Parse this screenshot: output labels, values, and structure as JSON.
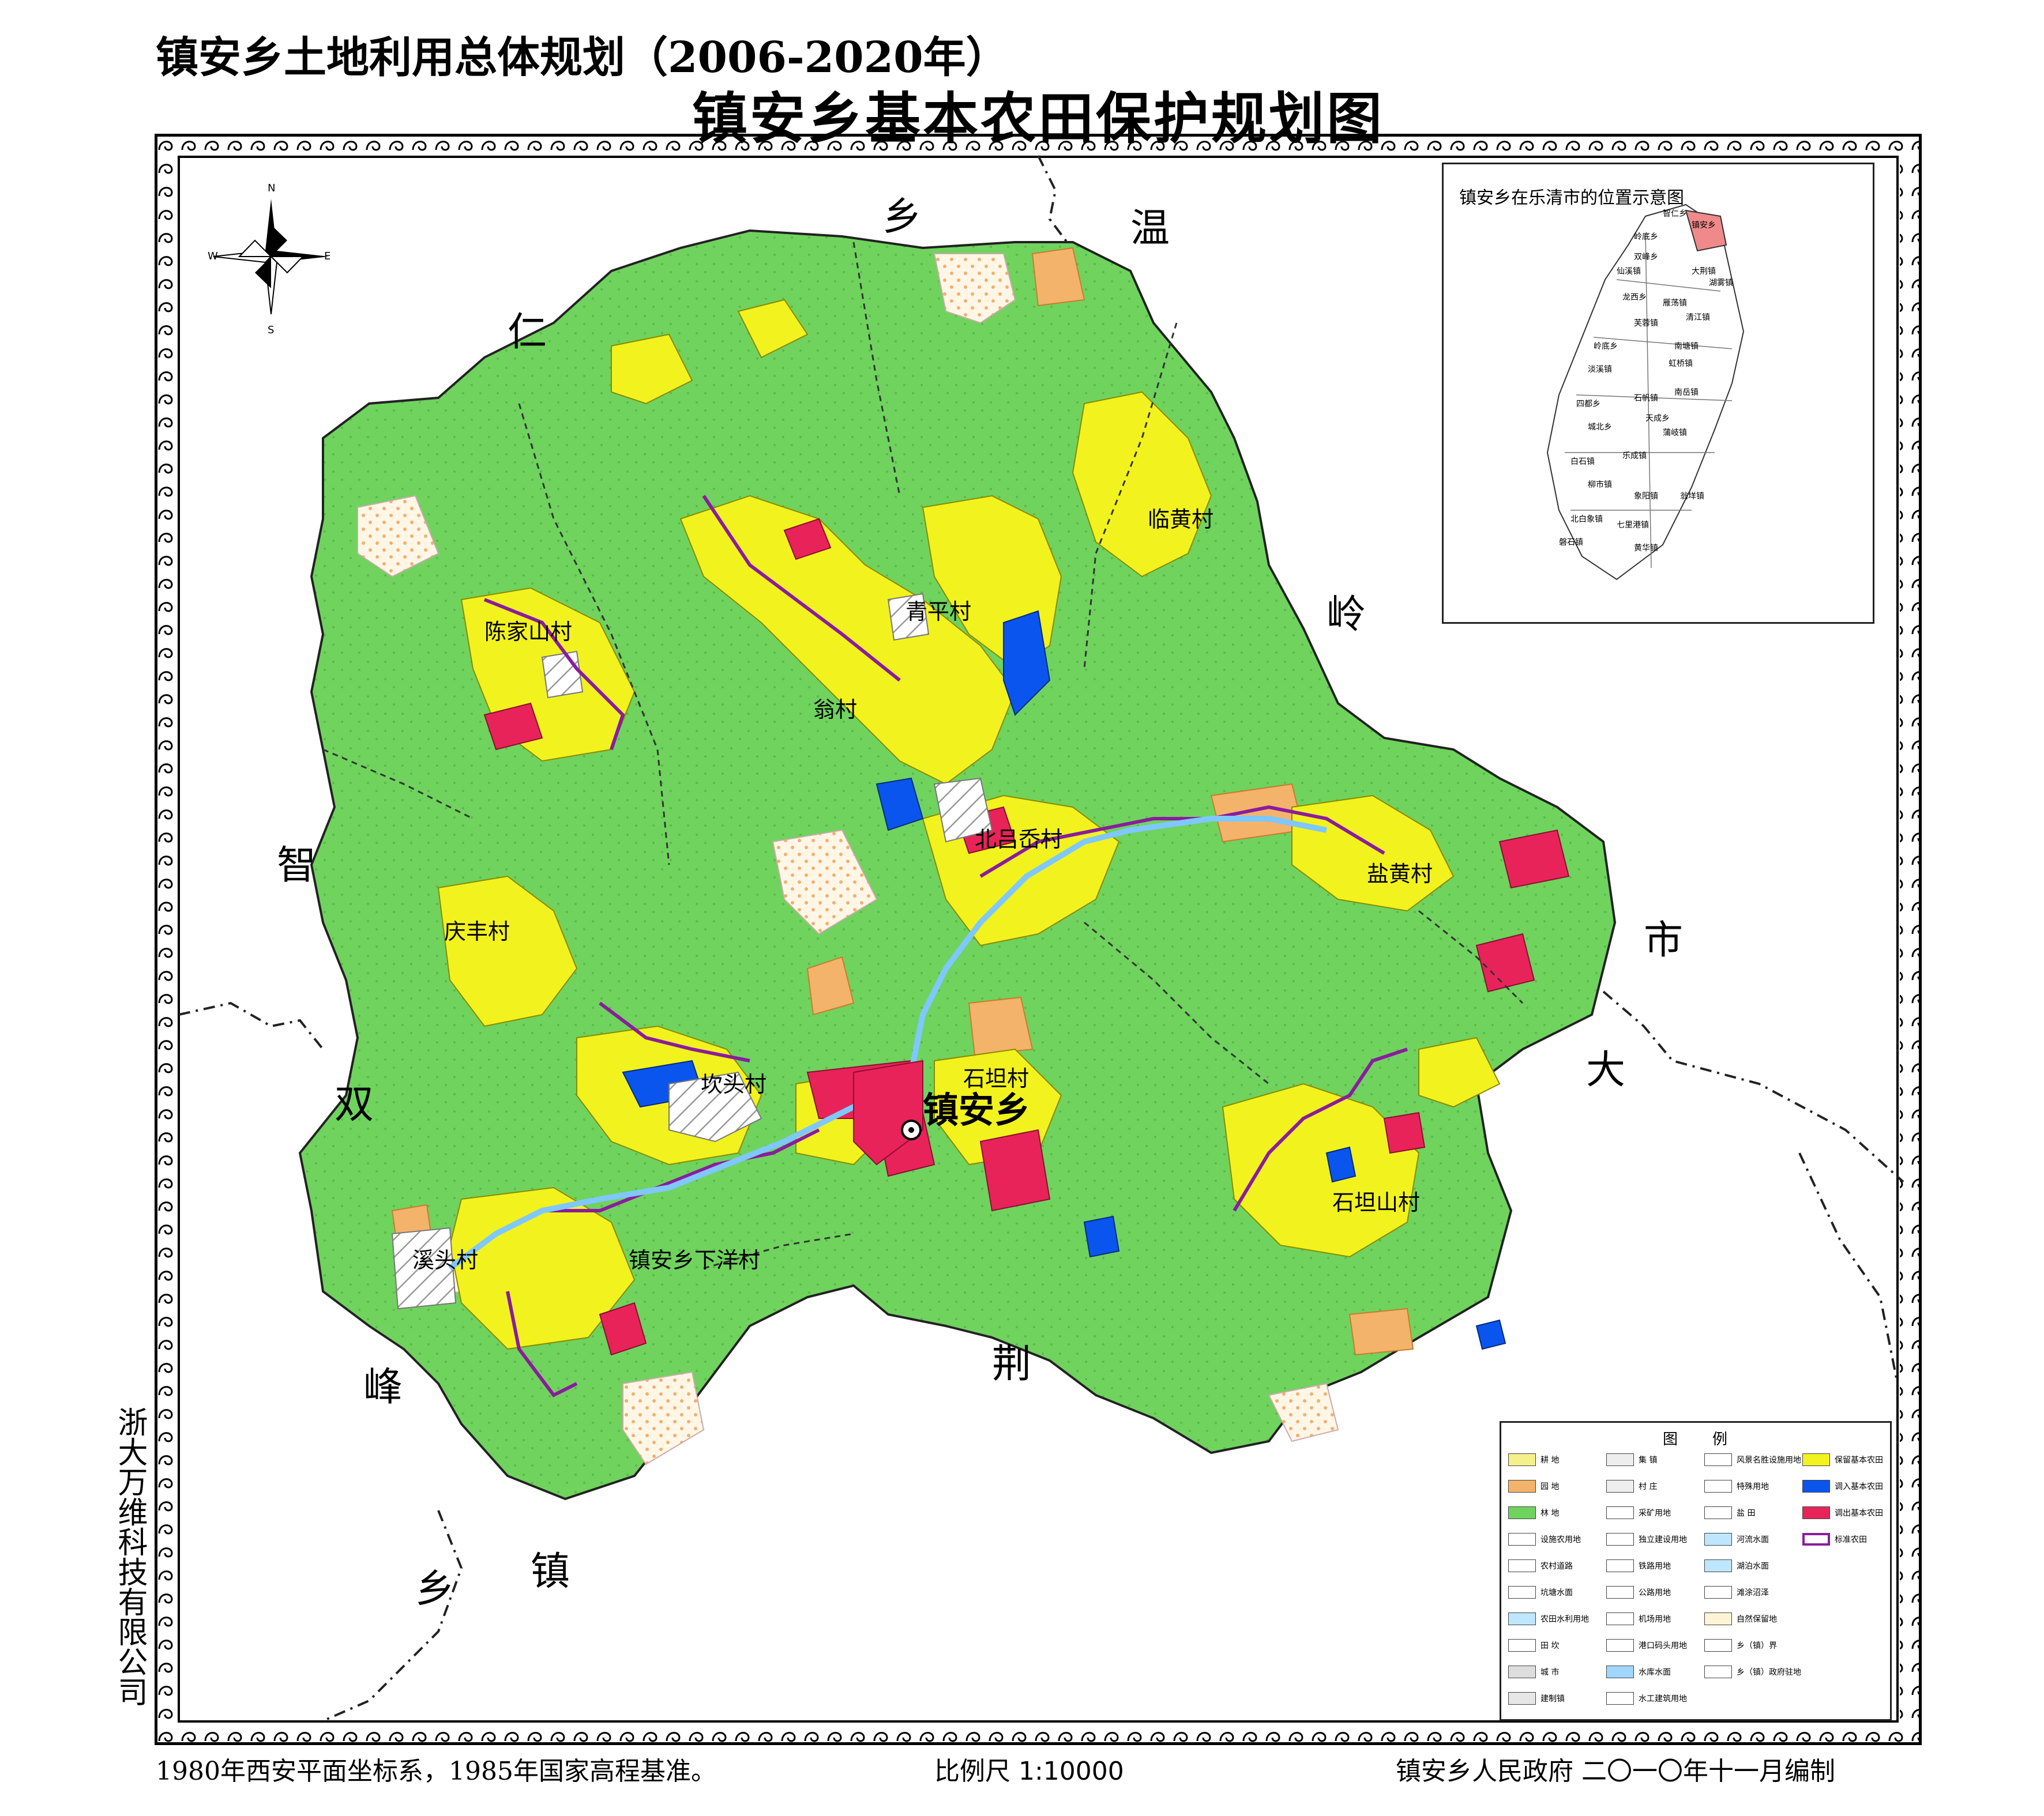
{
  "header": {
    "plan_title": "镇安乡土地利用总体规划（2006-2020年）",
    "map_title": "镇安乡基本农田保护规划图"
  },
  "compass": {
    "n": "N",
    "s": "S",
    "e": "E",
    "w": "W"
  },
  "neighbors": {
    "n1": "乡",
    "n2": "温",
    "n3": "仁",
    "n4": "岭",
    "n5": "智",
    "n6": "市",
    "n7": "双",
    "n8": "大",
    "n9": "峰",
    "n10": "荆",
    "n11": "乡",
    "n12": "镇"
  },
  "villages": {
    "chenjiashan": "陈家山村",
    "qingping": "青平村",
    "lin_huang": "临黄村",
    "weng": "翁村",
    "beilu": "北吕岙村",
    "yanhuang": "盐黄村",
    "qingfeng": "庆丰村",
    "kanfu": "坎头村",
    "shitan": "石坦村",
    "shitanshan": "石坦山村",
    "xitou": "溪头村",
    "xiayang": "镇安乡下洋村",
    "town": "镇安乡"
  },
  "inset": {
    "title": "镇安乡在乐清市的位置示意图",
    "towns": [
      "智仁乡",
      "镇安乡",
      "岭底乡",
      "双峰乡",
      "大荆镇",
      "湖雾镇",
      "仙溪镇",
      "龙西乡",
      "雁荡镇",
      "清江镇",
      "芙蓉镇",
      "岭底乡",
      "南塘镇",
      "淡溪镇",
      "虹桥镇",
      "南岳镇",
      "四都乡",
      "石帆镇",
      "天成乡",
      "城北乡",
      "蒲岐镇",
      "白石镇",
      "乐成镇",
      "柳市镇",
      "象阳镇",
      "翁垟镇",
      "北白象镇",
      "七里港镇",
      "磐石镇",
      "黄华镇"
    ]
  },
  "legend": {
    "title": "图例",
    "items": [
      {
        "label": "耕  地",
        "color": "#f5f08a"
      },
      {
        "label": "园  地",
        "color": "#f4b36a"
      },
      {
        "label": "林  地",
        "color": "#6fd35e"
      },
      {
        "label": "设施农用地",
        "color": "#ffffff"
      },
      {
        "label": "农村道路",
        "color": "#ffffff"
      },
      {
        "label": "坑塘水面",
        "color": "#ffffff"
      },
      {
        "label": "农田水利用地",
        "color": "#bfe6ff"
      },
      {
        "label": "田  坎",
        "color": "#ffffff"
      },
      {
        "label": "城  市",
        "color": "#dddddd"
      },
      {
        "label": "建制镇",
        "color": "#e6e6e6"
      },
      {
        "label": "集  镇",
        "color": "#eeeeee"
      },
      {
        "label": "村  庄",
        "color": "#eeeeee"
      },
      {
        "label": "采矿用地",
        "color": "#ffffff"
      },
      {
        "label": "独立建设用地",
        "color": "#ffffff"
      },
      {
        "label": "铁路用地",
        "color": "#ffffff"
      },
      {
        "label": "公路用地",
        "color": "#ffffff"
      },
      {
        "label": "机场用地",
        "color": "#ffffff"
      },
      {
        "label": "港口码头用地",
        "color": "#ffffff"
      },
      {
        "label": "水库水面",
        "color": "#9fd6ff"
      },
      {
        "label": "水工建筑用地",
        "color": "#ffffff"
      },
      {
        "label": "风景名胜设施用地",
        "color": "#ffffff"
      },
      {
        "label": "特殊用地",
        "color": "#ffffff"
      },
      {
        "label": "盐  田",
        "color": "#ffffff"
      },
      {
        "label": "河流水面",
        "color": "#bfe6ff"
      },
      {
        "label": "湖泊水面",
        "color": "#bfe6ff"
      },
      {
        "label": "滩涂沼泽",
        "color": "#ffffff"
      },
      {
        "label": "自然保留地",
        "color": "#fff4d6"
      },
      {
        "label": "乡（镇）界",
        "color": "#ffffff"
      },
      {
        "label": "乡（镇）政府驻地",
        "color": "#ffffff"
      },
      {
        "label": "保留基本农田",
        "color": "#f2f21e"
      },
      {
        "label": "调入基本农田",
        "color": "#0a55ee"
      },
      {
        "label": "调出基本农田",
        "color": "#e8235a"
      },
      {
        "label": "标准农田",
        "color": "#ffffff"
      }
    ]
  },
  "footer": {
    "company": "浙大万维科技有限公司",
    "coord_system": "1980年西安平面坐标系，1985年国家高程基准。",
    "scale": "比例尺    1:10000",
    "org_date": "镇安乡人民政府    二〇一〇年十一月编制"
  },
  "colors": {
    "forest": "#6fd35e",
    "basic_farmland": "#f2f21e",
    "moved_out": "#e8235a",
    "moved_in": "#0a55ee",
    "orchard": "#f4b36a",
    "standard_farmland": "#8a1c9e",
    "water": "#9fd6ff"
  }
}
